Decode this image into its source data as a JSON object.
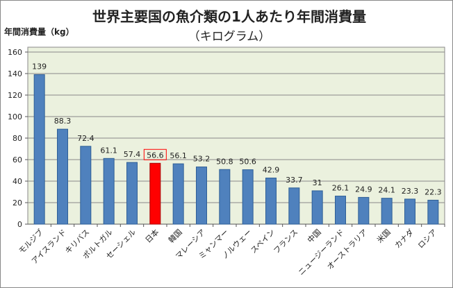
{
  "chart_data": {
    "type": "bar",
    "title": "世界主要国の魚介類の1人あたり年間消費量",
    "subtitle": "（キログラム）",
    "ylabel": "年間消費量（kg）",
    "xlabel": "",
    "ylim": [
      0,
      160
    ],
    "yticks": [
      0,
      20,
      40,
      60,
      80,
      100,
      120,
      140,
      160
    ],
    "grid": true,
    "categories": [
      "モルジブ",
      "アイスランド",
      "キリバス",
      "ポルトガル",
      "セーシェル",
      "日本",
      "韓国",
      "マレーシア",
      "ミャンマー",
      "ノルウェー",
      "スペイン",
      "フランス",
      "中国",
      "ニュージーランド",
      "オーストラリア",
      "米国",
      "カナダ",
      "ロシア"
    ],
    "values": [
      139,
      88.3,
      72.4,
      61.1,
      57.4,
      56.6,
      56.1,
      53.2,
      50.8,
      50.6,
      42.9,
      33.7,
      31,
      26.1,
      24.9,
      24.1,
      23.3,
      22.3
    ],
    "highlight": "日本",
    "colors": {
      "bar": "#4f81bd",
      "highlight": "#ff0000",
      "plot_bg": "#ebf1de",
      "label_box": "#ff0000"
    }
  }
}
